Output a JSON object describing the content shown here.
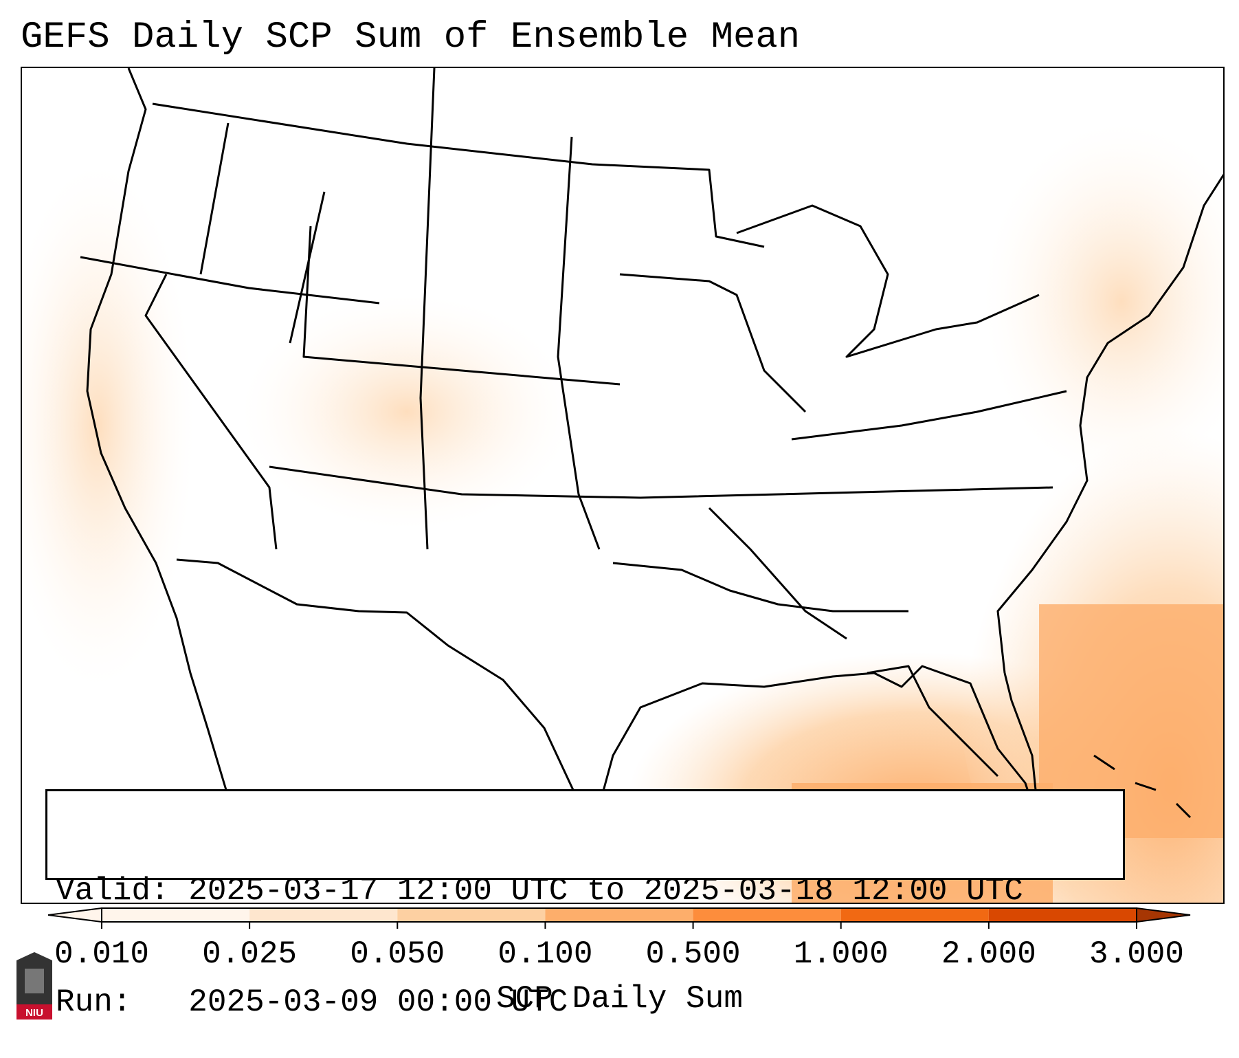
{
  "title": "GEFS Daily SCP Sum of Ensemble Mean",
  "info": {
    "valid_label": "Valid:",
    "valid_value": "2025-03-17 12:00 UTC to 2025-03-18 12:00 UTC",
    "run_label": "Run:",
    "run_value": "2025-03-09 00:00 UTC"
  },
  "colorbar": {
    "label": "SCP Daily Sum",
    "ticks": [
      "0.010",
      "0.025",
      "0.050",
      "0.100",
      "0.500",
      "1.000",
      "2.000",
      "3.000"
    ],
    "colors": [
      "#fff5eb",
      "#fee6ce",
      "#fdd0a2",
      "#fdae6b",
      "#fd8d3c",
      "#f16913",
      "#d94801",
      "#a63603"
    ]
  },
  "logo": {
    "text": "NIU",
    "accent": "#c8102e"
  }
}
